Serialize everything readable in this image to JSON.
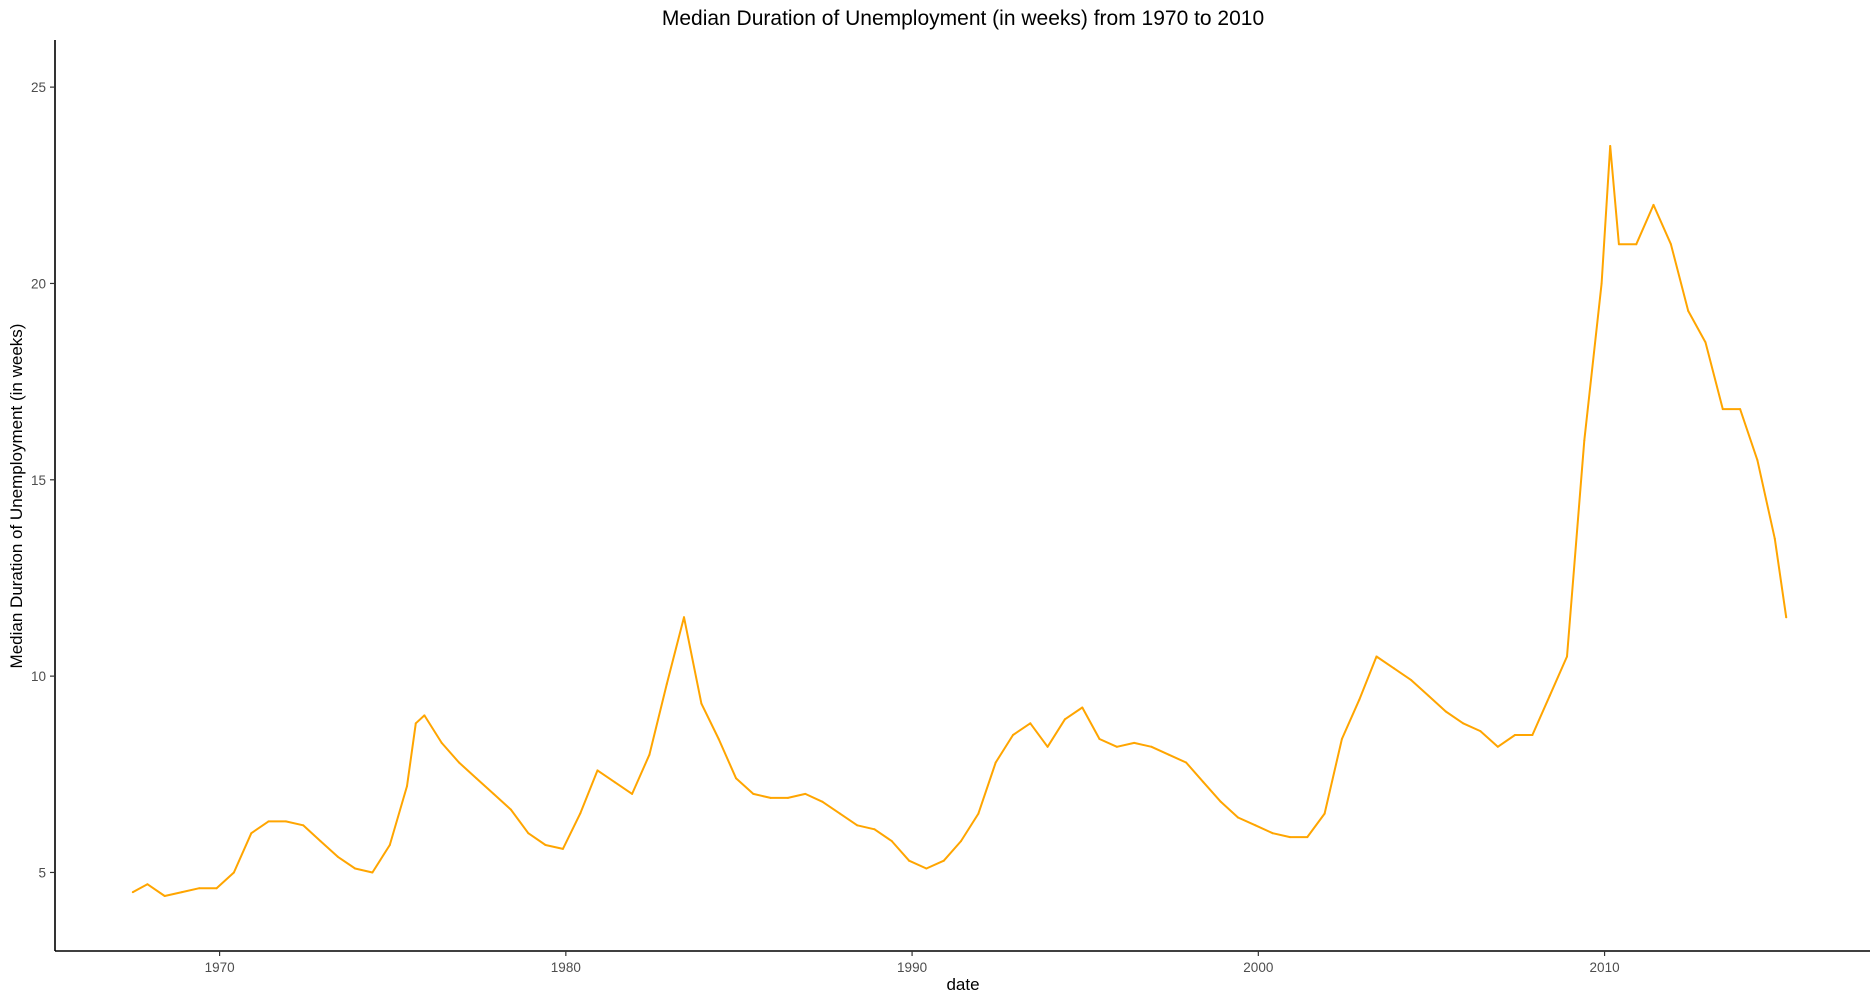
{
  "chart_data": {
    "type": "line",
    "title": "Median Duration of Unemployment (in weeks) from 1970 to 2010",
    "xlabel": "date",
    "ylabel": "Median Duration of Unemployment (in weeks)",
    "x_ticks": [
      "1970",
      "1980",
      "1990",
      "2000",
      "2010"
    ],
    "y_ticks": [
      "5",
      "10",
      "15",
      "20",
      "25"
    ],
    "xlim": [
      "1965-04-01",
      "2017-09-01"
    ],
    "ylim": [
      3.0,
      26.2
    ],
    "grid": false,
    "legend": "none",
    "line_color": "#FFA500",
    "series": [
      {
        "x": [
          "1967-07-01",
          "1967-12-01",
          "1968-06-01",
          "1968-12-01",
          "1969-06-01",
          "1969-12-01",
          "1970-06-01",
          "1970-12-01",
          "1971-06-01",
          "1971-12-01",
          "1972-06-01",
          "1972-12-01",
          "1973-06-01",
          "1973-12-01",
          "1974-06-01",
          "1974-12-01",
          "1975-06-01",
          "1975-09-01",
          "1975-12-01",
          "1976-06-01",
          "1976-12-01",
          "1977-06-01",
          "1977-12-01",
          "1978-06-01",
          "1978-12-01",
          "1979-06-01",
          "1979-12-01",
          "1980-06-01",
          "1980-12-01",
          "1981-06-01",
          "1981-12-01",
          "1982-06-01",
          "1982-12-01",
          "1983-06-01",
          "1983-12-01",
          "1984-06-01",
          "1984-12-01",
          "1985-06-01",
          "1985-12-01",
          "1986-06-01",
          "1986-12-01",
          "1987-06-01",
          "1987-12-01",
          "1988-06-01",
          "1988-12-01",
          "1989-06-01",
          "1989-12-01",
          "1990-06-01",
          "1990-12-01",
          "1991-06-01",
          "1991-12-01",
          "1992-06-01",
          "1992-12-01",
          "1993-06-01",
          "1993-12-01",
          "1994-06-01",
          "1994-12-01",
          "1995-06-01",
          "1995-12-01",
          "1996-06-01",
          "1996-12-01",
          "1997-06-01",
          "1997-12-01",
          "1998-06-01",
          "1998-12-01",
          "1999-06-01",
          "1999-12-01",
          "2000-06-01",
          "2000-12-01",
          "2001-06-01",
          "2001-12-01",
          "2002-06-01",
          "2002-12-01",
          "2003-06-01",
          "2003-12-01",
          "2004-06-01",
          "2004-12-01",
          "2005-06-01",
          "2005-12-01",
          "2006-06-01",
          "2006-12-01",
          "2007-06-01",
          "2007-12-01",
          "2008-06-01",
          "2008-12-01",
          "2009-06-01",
          "2009-12-01",
          "2010-03-01",
          "2010-06-01",
          "2010-12-01",
          "2011-06-01",
          "2011-12-01",
          "2012-06-01",
          "2012-12-01",
          "2013-06-01",
          "2013-12-01",
          "2014-06-01",
          "2014-12-01",
          "2015-04-01"
        ],
        "values": [
          4.5,
          4.7,
          4.4,
          4.5,
          4.6,
          4.6,
          5.0,
          6.0,
          6.3,
          6.3,
          6.2,
          5.8,
          5.4,
          5.1,
          5.0,
          5.7,
          7.2,
          8.8,
          9.0,
          8.3,
          7.8,
          7.4,
          7.0,
          6.6,
          6.0,
          5.7,
          5.6,
          6.5,
          7.6,
          7.3,
          7.0,
          8.0,
          9.8,
          11.5,
          9.3,
          8.4,
          7.4,
          7.0,
          6.9,
          6.9,
          7.0,
          6.8,
          6.5,
          6.2,
          6.1,
          5.8,
          5.3,
          5.1,
          5.3,
          5.8,
          6.5,
          7.8,
          8.5,
          8.8,
          8.2,
          8.9,
          9.2,
          8.4,
          8.2,
          8.3,
          8.2,
          8.0,
          7.8,
          7.3,
          6.8,
          6.4,
          6.2,
          6.0,
          5.9,
          5.9,
          6.5,
          8.4,
          9.4,
          10.5,
          10.2,
          9.9,
          9.5,
          9.1,
          8.8,
          8.6,
          8.2,
          8.5,
          8.5,
          9.5,
          10.5,
          16.0,
          20.0,
          23.5,
          21.0,
          21.0,
          22.0,
          21.0,
          19.3,
          18.5,
          16.8,
          16.8,
          15.5,
          13.5,
          11.5
        ]
      }
    ]
  }
}
